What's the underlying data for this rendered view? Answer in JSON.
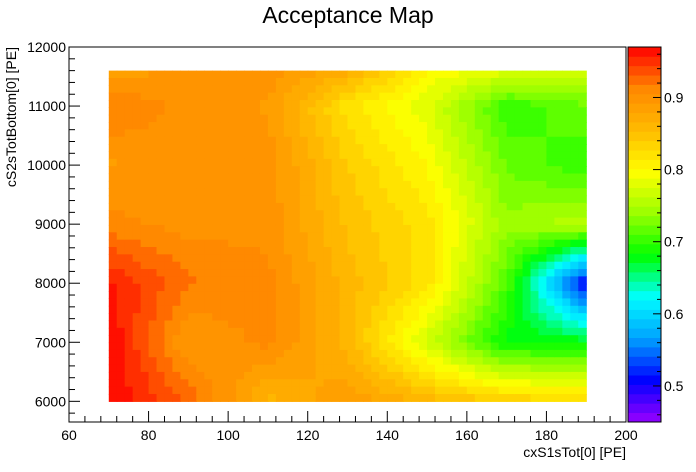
{
  "chart_data": {
    "type": "heatmap",
    "style": "filled-contour",
    "title": "Acceptance Map",
    "xlabel": "cxS1sTot[0]  [PE]",
    "ylabel": "cS2sTotBottom[0]  [PE]",
    "xlim": [
      60,
      200
    ],
    "ylim": [
      5650,
      12000
    ],
    "x_ticks": [
      60,
      80,
      100,
      120,
      140,
      160,
      180,
      200
    ],
    "y_ticks": [
      6000,
      7000,
      8000,
      9000,
      10000,
      11000,
      12000
    ],
    "colorbar": {
      "range": [
        0.45,
        0.97
      ],
      "ticks": [
        "0.5",
        "0.6",
        "0.7",
        "0.8",
        "0.9"
      ],
      "tick_values": [
        0.5,
        0.6,
        0.7,
        0.8,
        0.9
      ],
      "levels": 40,
      "palette_stops": [
        "#9900ff",
        "#0000ff",
        "#00a0ff",
        "#00ffff",
        "#00ff00",
        "#99ff00",
        "#ffff00",
        "#ffbb00",
        "#ff8800",
        "#ff0000"
      ]
    },
    "grid": false,
    "x": [
      70,
      90,
      110,
      130,
      150,
      170,
      190
    ],
    "y": [
      6000,
      7000,
      8000,
      9000,
      10000,
      11000,
      11600
    ],
    "z": [
      [
        0.97,
        0.93,
        0.86,
        0.89,
        0.86,
        0.84,
        0.83
      ],
      [
        0.97,
        0.89,
        0.91,
        0.86,
        0.77,
        0.68,
        0.68
      ],
      [
        0.96,
        0.92,
        0.91,
        0.86,
        0.82,
        0.71,
        0.5
      ],
      [
        0.91,
        0.9,
        0.9,
        0.85,
        0.82,
        0.74,
        0.76
      ],
      [
        0.89,
        0.9,
        0.9,
        0.84,
        0.8,
        0.72,
        0.7
      ],
      [
        0.92,
        0.9,
        0.89,
        0.82,
        0.78,
        0.7,
        0.72
      ],
      [
        0.88,
        0.9,
        0.9,
        0.87,
        0.8,
        0.78,
        0.78
      ]
    ]
  }
}
